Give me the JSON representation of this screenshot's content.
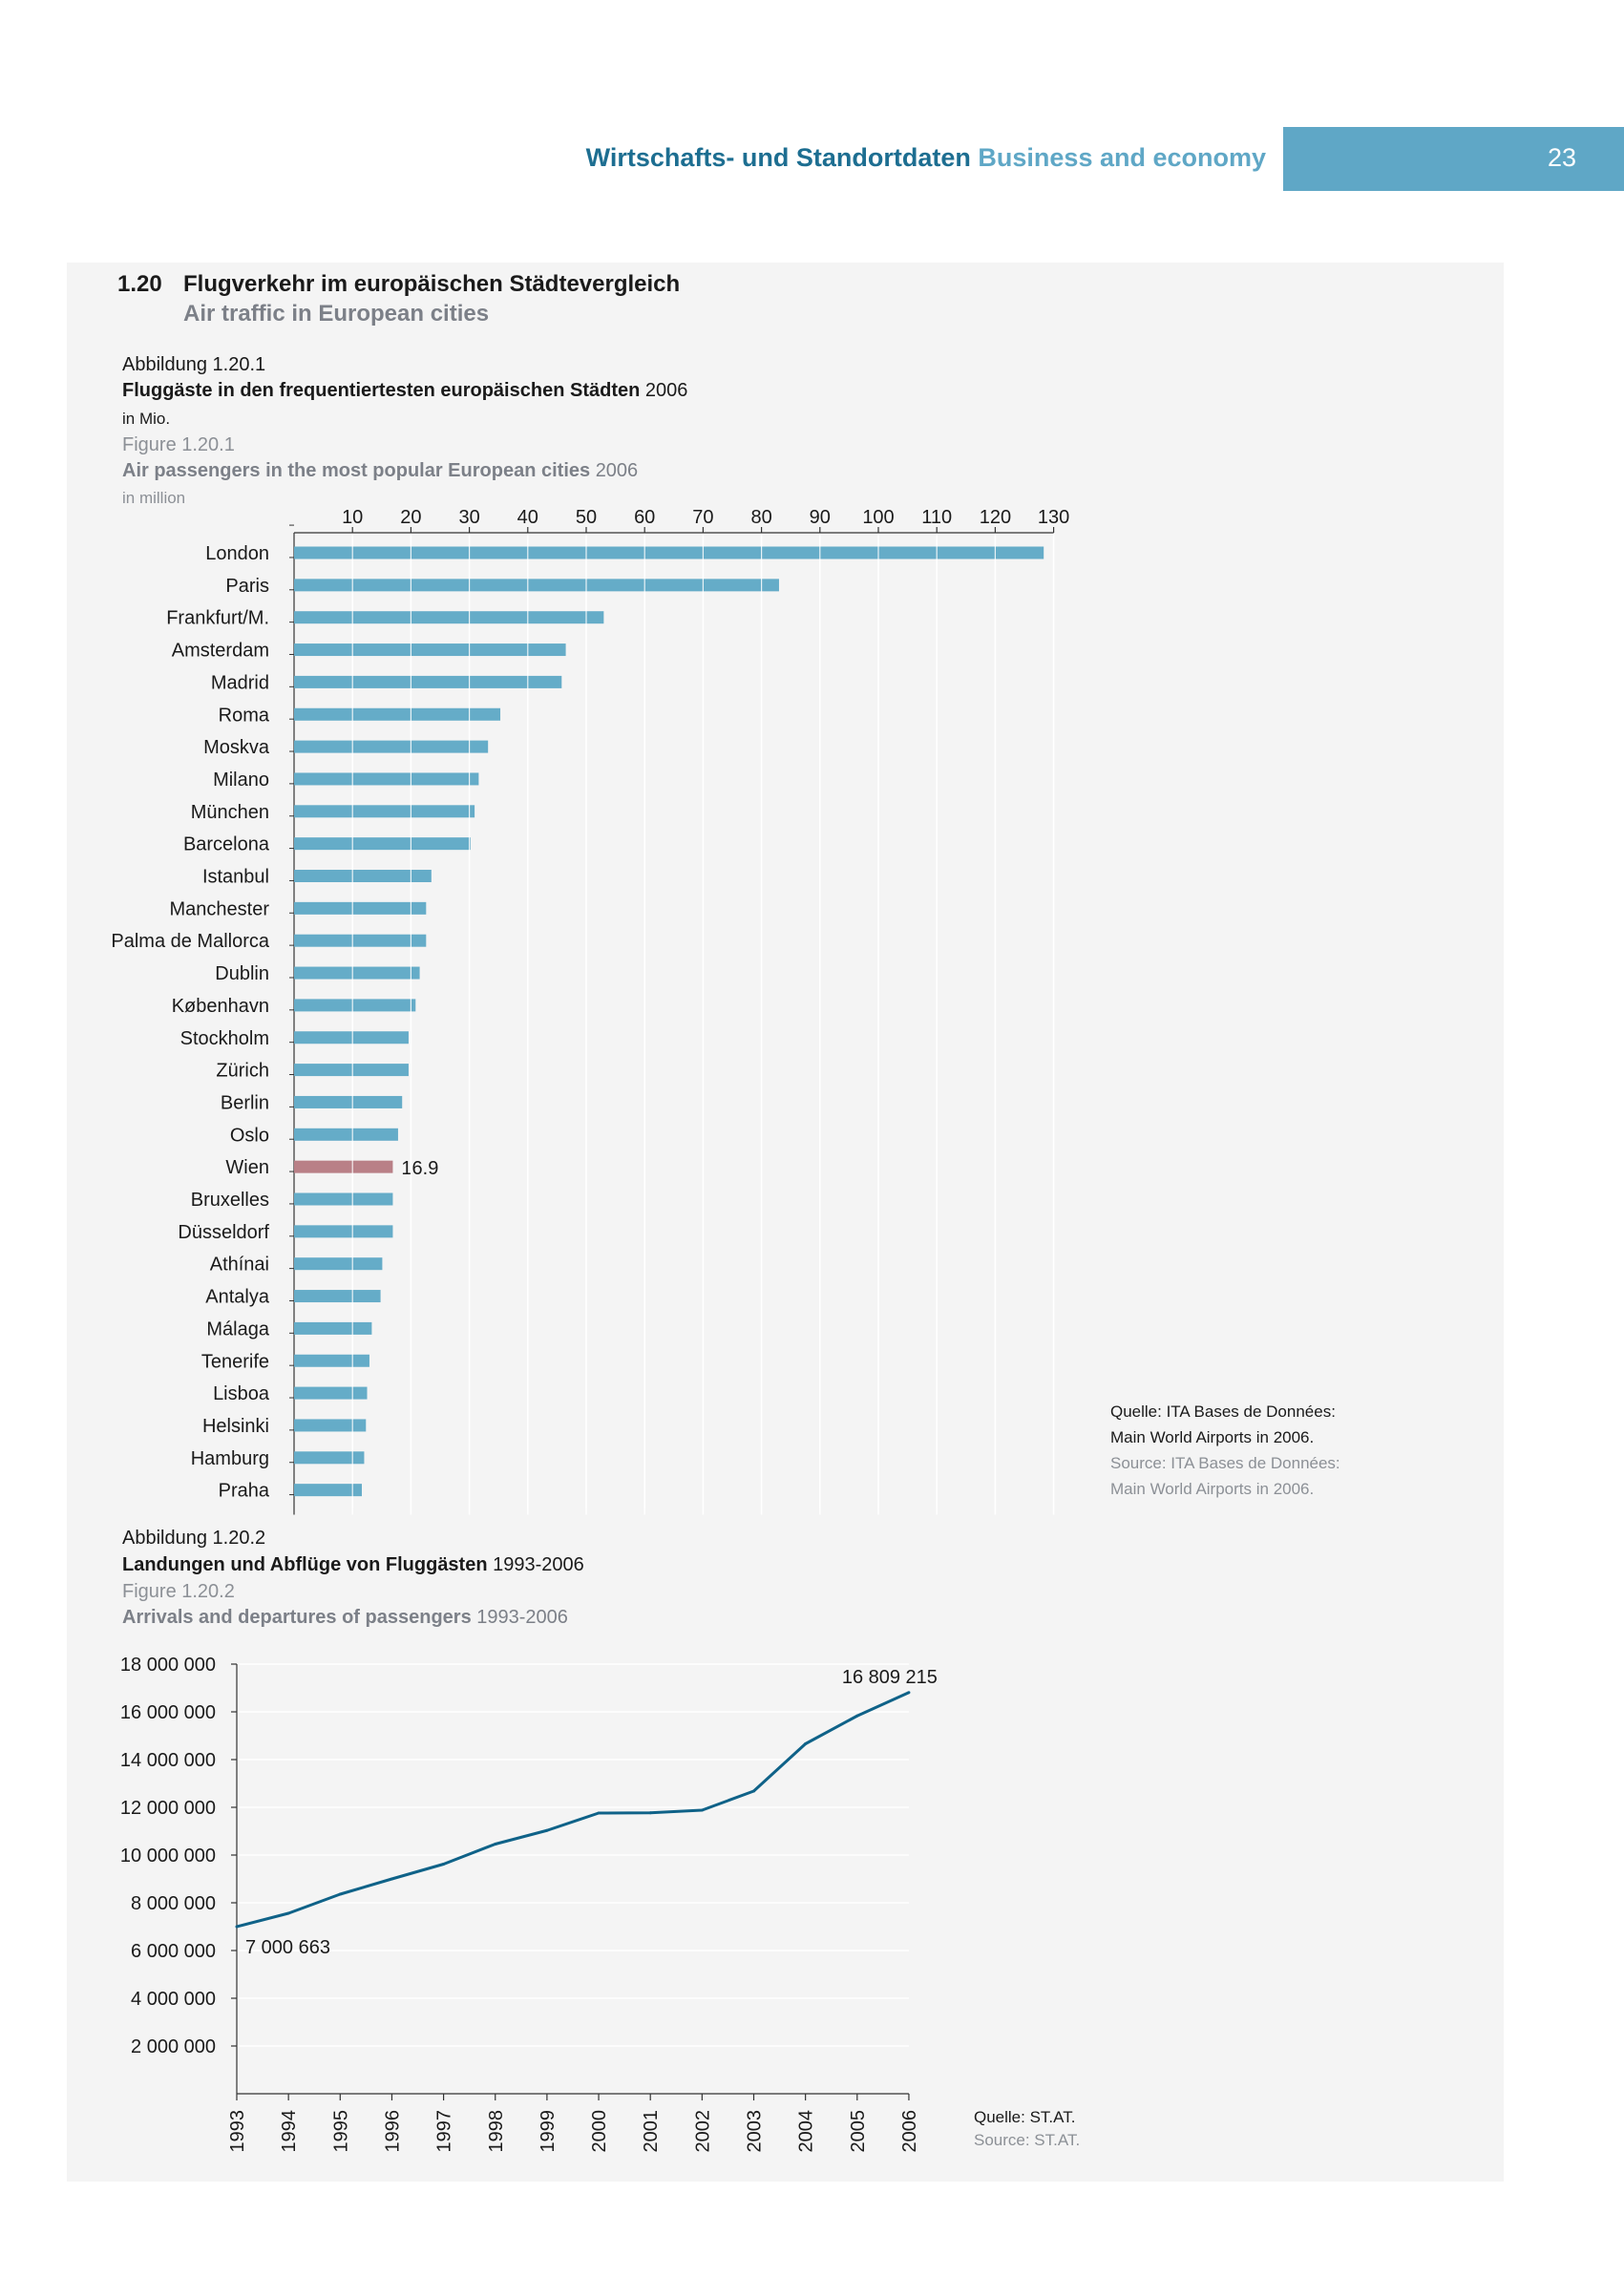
{
  "header": {
    "title_de": "Wirtschafts- und Standortdaten",
    "title_en": "Business and economy",
    "page_number": "23"
  },
  "section": {
    "number": "1.20",
    "title_de": "Flugverkehr im europäischen Städtevergleich",
    "title_en": "Air traffic in European cities"
  },
  "figure1": {
    "label_de": "Abbildung 1.20.1",
    "title_de": "Fluggäste in den frequentiertesten europäischen Städten",
    "year": "2006",
    "unit_de": "in Mio.",
    "label_en": "Figure 1.20.1",
    "title_en": "Air passengers in the most popular European cities",
    "unit_en": "in million",
    "source_de_1": "Quelle: ITA Bases de Données:",
    "source_de_2": "Main World Airports in 2006.",
    "source_en_1": "Source: ITA Bases de Données:",
    "source_en_2": "Main World Airports in 2006."
  },
  "figure2": {
    "label_de": "Abbildung 1.20.2",
    "title_de": "Landungen und Abflüge von Fluggästen",
    "period": "1993-2006",
    "label_en": "Figure 1.20.2",
    "title_en": "Arrivals and departures of passengers",
    "source_de": "Quelle: ST.AT.",
    "source_en": "Source: ST.AT."
  },
  "colors": {
    "bar": "#65acc8",
    "highlight_bar": "#b98087",
    "line": "#0f6288",
    "header_blue": "#1d6e91",
    "header_light": "#5fa7c6"
  },
  "chart_data": [
    {
      "type": "bar",
      "orientation": "horizontal",
      "title": "Fluggäste in den frequentiertesten europäischen Städten 2006",
      "unit": "in Mio.",
      "xlim": [
        0,
        130
      ],
      "ticks": [
        10,
        20,
        30,
        40,
        50,
        60,
        70,
        80,
        90,
        100,
        110,
        120,
        130
      ],
      "categories": [
        "London",
        "Paris",
        "Frankfurt/M.",
        "Amsterdam",
        "Madrid",
        "Roma",
        "Moskva",
        "Milano",
        "München",
        "Barcelona",
        "Istanbul",
        "Manchester",
        "Palma de Mallorca",
        "Dublin",
        "København",
        "Stockholm",
        "Zürich",
        "Berlin",
        "Oslo",
        "Wien",
        "Bruxelles",
        "Düsseldorf",
        "Athínai",
        "Antalya",
        "Málaga",
        "Tenerife",
        "Lisboa",
        "Helsinki",
        "Hamburg",
        "Praha"
      ],
      "values": [
        128.3,
        83.0,
        53.0,
        46.5,
        45.8,
        35.3,
        33.2,
        31.6,
        30.9,
        30.2,
        23.5,
        22.6,
        22.6,
        21.5,
        20.8,
        19.6,
        19.6,
        18.5,
        17.8,
        16.9,
        16.9,
        16.9,
        15.1,
        14.8,
        13.3,
        12.9,
        12.5,
        12.3,
        12.0,
        11.6
      ],
      "highlight": "Wien",
      "highlight_label": "16.9"
    },
    {
      "type": "line",
      "title": "Landungen und Abflüge von Fluggästen 1993-2006",
      "x": [
        "1993",
        "1994",
        "1995",
        "1996",
        "1997",
        "1998",
        "1999",
        "2000",
        "2001",
        "2002",
        "2003",
        "2004",
        "2005",
        "2006"
      ],
      "values": [
        7000663,
        7560000,
        8360000,
        9000000,
        9620000,
        10460000,
        11030000,
        11760000,
        11770000,
        11880000,
        12680000,
        14660000,
        15830000,
        16809215
      ],
      "ylim": [
        0,
        18000000
      ],
      "yticks": [
        2000000,
        4000000,
        6000000,
        8000000,
        10000000,
        12000000,
        14000000,
        16000000,
        18000000
      ],
      "ytick_labels": [
        "2 000 000",
        "4 000 000",
        "6 000 000",
        "8 000 000",
        "10 000 000",
        "12 000 000",
        "14 000 000",
        "16 000 000",
        "18 000 000"
      ],
      "start_label": "7 000 663",
      "end_label": "16 809 215"
    }
  ]
}
